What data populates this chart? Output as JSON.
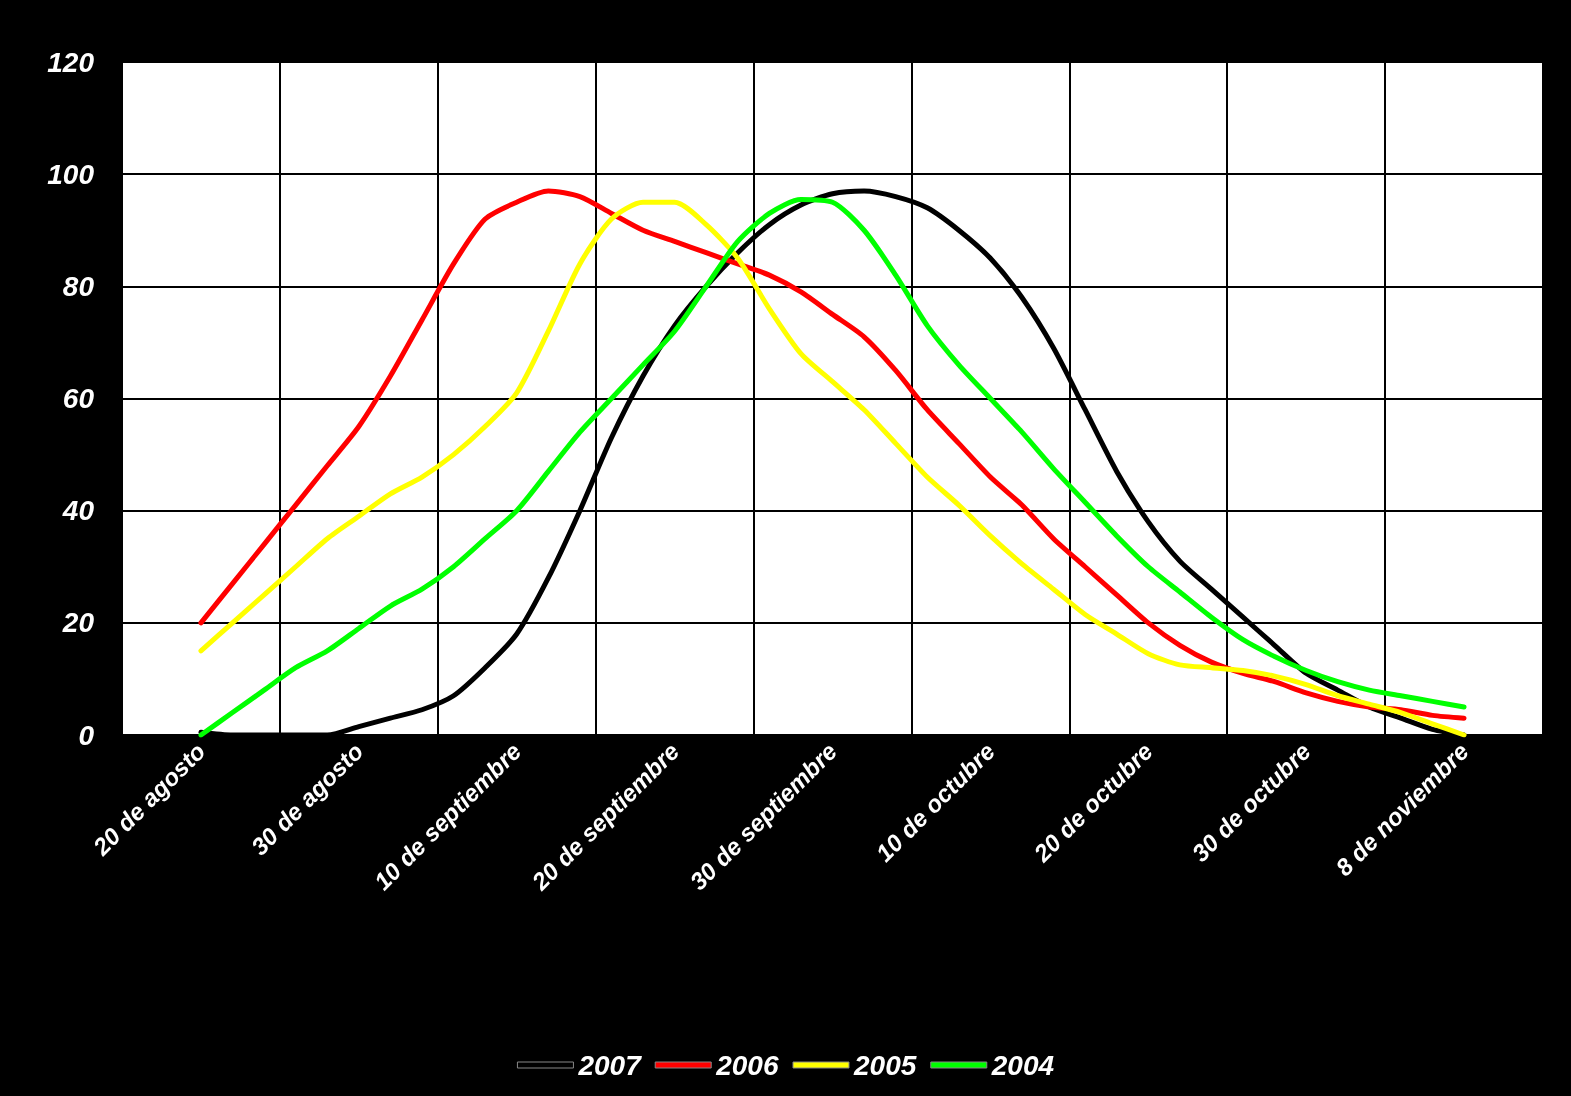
{
  "chart_data": {
    "type": "line",
    "categories": [
      null,
      null,
      "20 de agosto",
      null,
      null,
      null,
      null,
      "30 de agosto",
      null,
      null,
      null,
      null,
      "10 de septiembre",
      null,
      null,
      null,
      null,
      "20 de septiembre",
      null,
      null,
      null,
      null,
      "30 de septiembre",
      null,
      null,
      null,
      null,
      "10 de octubre",
      null,
      null,
      null,
      null,
      "20 de octubre",
      null,
      null,
      null,
      null,
      "30 de octubre",
      null,
      null,
      null,
      null,
      "8 de noviembre",
      null,
      null
    ],
    "series": [
      {
        "name": "2007",
        "color": "#000000",
        "values": [
          null,
          null,
          0.5,
          0,
          0,
          0,
          0,
          1.5,
          3,
          4.5,
          7,
          12,
          18,
          28,
          40,
          53,
          64,
          73,
          80,
          86,
          91,
          94.5,
          96.5,
          97,
          96,
          94,
          90,
          85,
          78,
          69,
          58,
          47,
          38,
          31,
          26,
          21,
          16,
          11,
          8,
          5,
          3,
          1,
          0,
          null,
          null
        ]
      },
      {
        "name": "2006",
        "color": "#ff0000",
        "values": [
          null,
          null,
          20,
          27,
          34,
          41,
          48,
          55,
          64,
          74,
          84,
          92,
          95,
          97,
          96,
          93,
          90,
          88,
          86,
          84,
          82,
          79,
          75,
          71,
          65,
          58,
          52,
          46,
          41,
          35,
          30,
          25,
          20,
          16,
          13,
          11,
          9.5,
          7.5,
          6,
          5,
          4.5,
          3.5,
          3,
          null,
          null
        ]
      },
      {
        "name": "2005",
        "color": "#ffff00",
        "values": [
          null,
          null,
          15,
          20,
          25,
          30,
          35,
          39,
          43,
          46,
          50,
          55,
          61,
          72,
          84,
          92,
          95,
          95,
          91,
          85,
          76,
          68,
          63,
          58,
          52,
          46,
          41,
          35.5,
          30.5,
          26,
          21.5,
          18,
          14.5,
          12.5,
          12,
          11.5,
          10.5,
          9,
          7,
          5.5,
          4,
          2,
          0,
          null,
          null
        ]
      },
      {
        "name": "2004",
        "color": "#00ff00",
        "values": [
          null,
          null,
          0,
          4,
          8,
          12,
          15,
          19,
          23,
          26,
          30,
          35,
          40,
          47,
          54,
          60,
          66,
          72,
          80,
          88,
          93,
          95.5,
          95,
          90,
          82,
          73,
          66,
          60,
          54,
          47.5,
          41.5,
          35.5,
          30,
          25.5,
          21,
          17,
          14,
          11.5,
          9.5,
          8,
          7,
          6,
          5,
          null,
          null
        ]
      }
    ],
    "ylim": [
      0,
      120
    ],
    "yticks": [
      0,
      20,
      40,
      60,
      80,
      100,
      120
    ],
    "grid": true,
    "legend": "bottom",
    "marker": "none",
    "line_style": "solid"
  }
}
